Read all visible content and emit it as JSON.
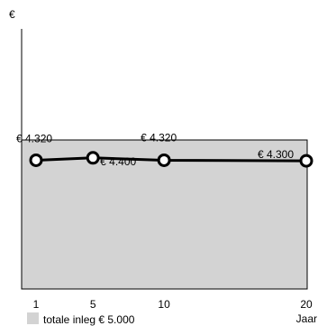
{
  "chart_data": {
    "type": "line",
    "ylabel": "€",
    "xlabel": "Jaar",
    "x": [
      1,
      5,
      10,
      20
    ],
    "xticks": [
      "1",
      "5",
      "10",
      "20"
    ],
    "ylim": [
      0,
      5000
    ],
    "grid": false,
    "series": [
      {
        "values": [
          4320,
          4400,
          4320,
          4300
        ],
        "labels": [
          "€ 4.320",
          "€ 4.400",
          "€ 4.320",
          "€ 4.300"
        ],
        "color": "#000000"
      }
    ],
    "area": {
      "name": "totale inleg € 5.000",
      "value": 5000,
      "color": "#d3d3d3"
    },
    "legend": "bottom-left"
  }
}
